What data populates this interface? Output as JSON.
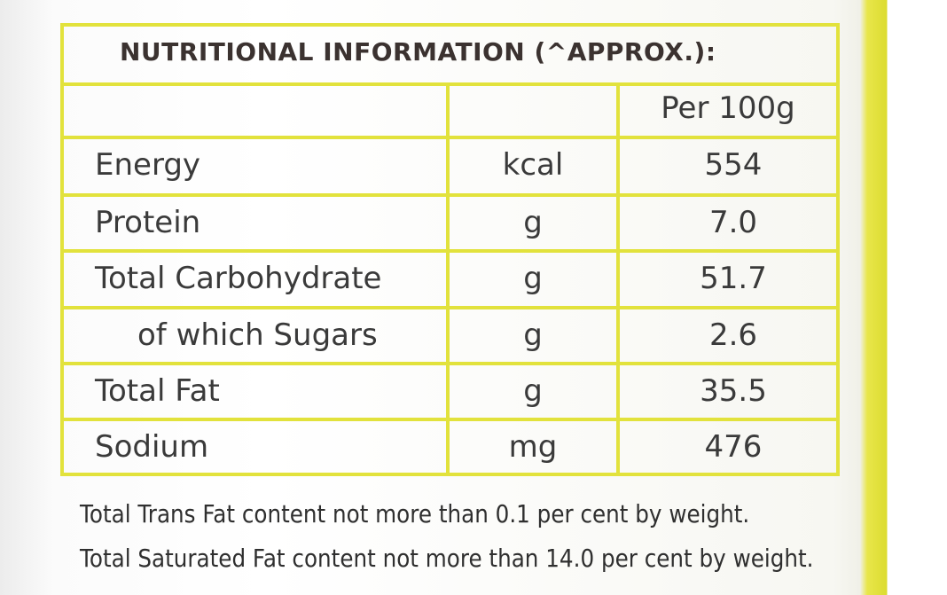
{
  "title": "NUTRITIONAL INFORMATION (^APPROX.):",
  "table": {
    "header": [
      "Per 100g"
    ],
    "rows": [
      [
        "Energy",
        "kcal",
        "554"
      ],
      [
        "Protein",
        "g",
        "7.0"
      ],
      [
        "Total Carbohydrate",
        "g",
        "51.7"
      ],
      [
        "of which Sugars",
        "g",
        "2.6"
      ],
      [
        "Total Fat",
        "g",
        "35.5"
      ],
      [
        "Sodium",
        "mg",
        "476"
      ]
    ]
  },
  "notes": [
    "Total Trans Fat content not more than 0.1 per cent by weight.",
    "Total Saturated Fat content not more than 14.0 per cent by weight."
  ]
}
